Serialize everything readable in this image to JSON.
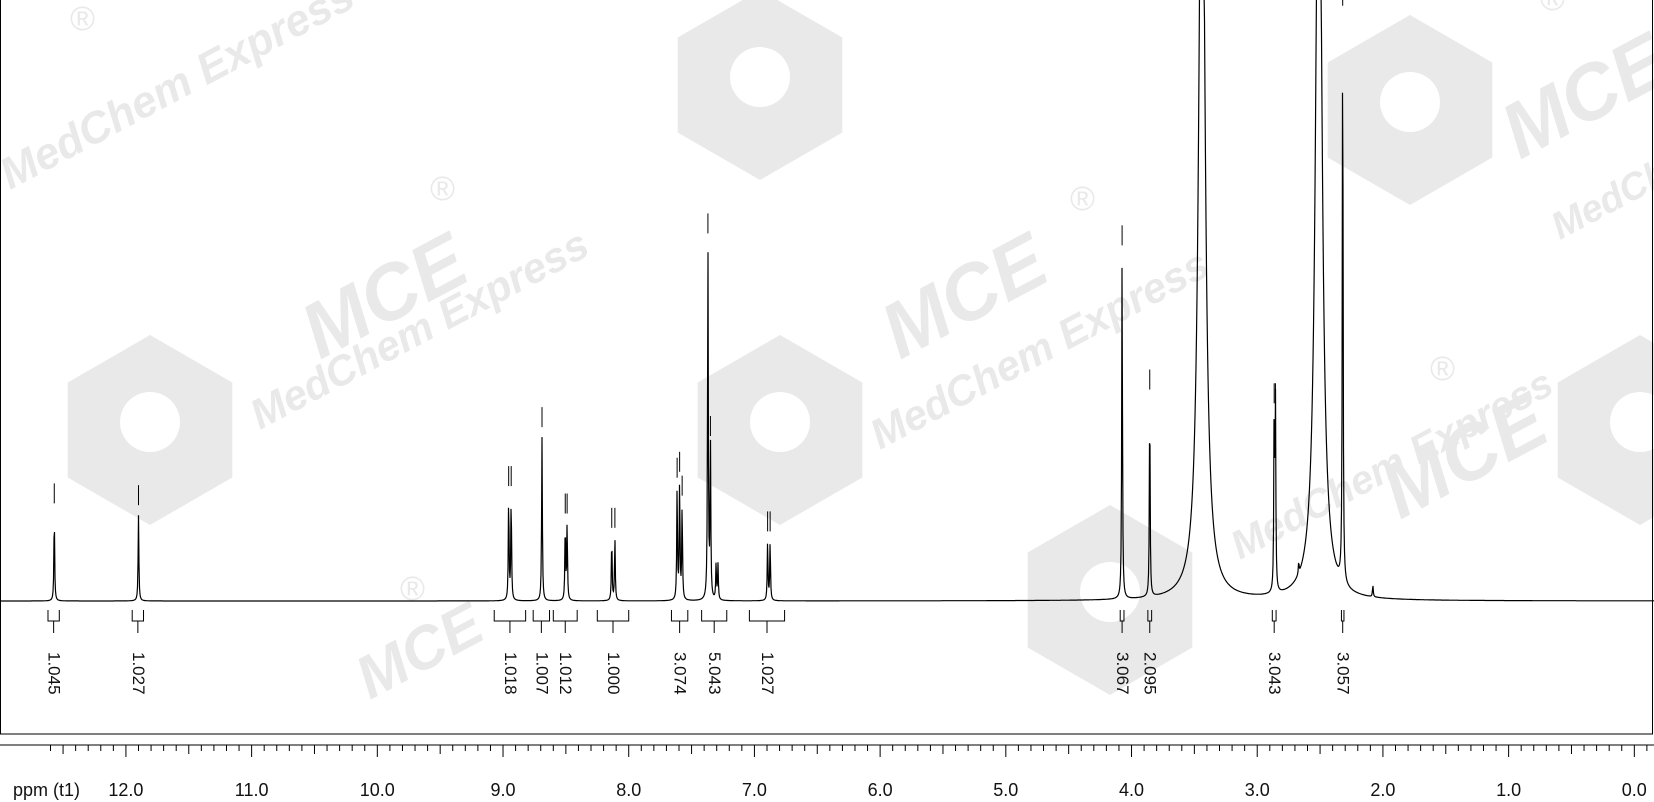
{
  "chart_data": {
    "type": "line",
    "title": "",
    "xlabel": "ppm (t1)",
    "ylabel": "",
    "xlim": [
      12.6,
      -0.2
    ],
    "x_reversed": true,
    "grid": false,
    "x_ticks": [
      {
        "value": 12.0,
        "label": "12.0"
      },
      {
        "value": 11.0,
        "label": "11.0"
      },
      {
        "value": 10.0,
        "label": "10.0"
      },
      {
        "value": 9.0,
        "label": "9.0"
      },
      {
        "value": 8.0,
        "label": "8.0"
      },
      {
        "value": 7.0,
        "label": "7.0"
      },
      {
        "value": 6.0,
        "label": "6.0"
      },
      {
        "value": 5.0,
        "label": "5.0"
      },
      {
        "value": 4.0,
        "label": "4.0"
      },
      {
        "value": 3.0,
        "label": "3.0"
      },
      {
        "value": 2.0,
        "label": "2.0"
      },
      {
        "value": 1.0,
        "label": "1.0"
      },
      {
        "value": 0.0,
        "label": "0.0"
      }
    ],
    "peaks": [
      {
        "ppm": 12.57,
        "height": 0.147
      },
      {
        "ppm": 11.9,
        "height": 0.144
      },
      {
        "ppm": 8.955,
        "height": 0.176
      },
      {
        "ppm": 8.935,
        "height": 0.176
      },
      {
        "ppm": 8.69,
        "height": 0.275
      },
      {
        "ppm": 8.505,
        "height": 0.13
      },
      {
        "ppm": 8.49,
        "height": 0.13
      },
      {
        "ppm": 8.135,
        "height": 0.106
      },
      {
        "ppm": 8.11,
        "height": 0.106
      },
      {
        "ppm": 7.615,
        "height": 0.19
      },
      {
        "ppm": 7.595,
        "height": 0.2
      },
      {
        "ppm": 7.575,
        "height": 0.16
      },
      {
        "ppm": 7.37,
        "height": 0.6
      },
      {
        "ppm": 7.35,
        "height": 0.26
      },
      {
        "ppm": 7.305,
        "height": 0.06
      },
      {
        "ppm": 7.29,
        "height": 0.06
      },
      {
        "ppm": 6.895,
        "height": 0.1
      },
      {
        "ppm": 6.875,
        "height": 0.1
      },
      {
        "ppm": 4.075,
        "height": 0.58
      },
      {
        "ppm": 3.855,
        "height": 0.338
      },
      {
        "ppm": 3.44,
        "height": 1.5
      },
      {
        "ppm": 2.865,
        "height": 0.315
      },
      {
        "ppm": 2.855,
        "height": 0.315
      },
      {
        "ppm": 2.67,
        "height": 0.02
      },
      {
        "ppm": 2.51,
        "height": 1.5
      },
      {
        "ppm": 2.32,
        "height": 0.982
      },
      {
        "ppm": 2.08,
        "height": 0.02
      }
    ],
    "integrals": [
      {
        "from": 12.62,
        "to": 12.53,
        "value": "1.045"
      },
      {
        "from": 11.95,
        "to": 11.86,
        "value": "1.027"
      },
      {
        "from": 9.07,
        "to": 8.82,
        "value": "1.018"
      },
      {
        "from": 8.76,
        "to": 8.63,
        "value": "1.007"
      },
      {
        "from": 8.6,
        "to": 8.41,
        "value": "1.012"
      },
      {
        "from": 8.25,
        "to": 8.0,
        "value": "1.000"
      },
      {
        "from": 7.66,
        "to": 7.53,
        "value": "3.074"
      },
      {
        "from": 7.42,
        "to": 7.22,
        "value": "5.043"
      },
      {
        "from": 7.04,
        "to": 6.76,
        "value": "1.027"
      },
      {
        "from": 4.09,
        "to": 4.06,
        "value": "3.067"
      },
      {
        "from": 3.87,
        "to": 3.84,
        "value": "2.095"
      },
      {
        "from": 2.88,
        "to": 2.85,
        "value": "3.043"
      },
      {
        "from": 2.33,
        "to": 2.31,
        "value": "3.057"
      }
    ]
  },
  "watermark": {
    "brand": "MCE",
    "text": "MedChem Express",
    "registered": "®",
    "color": "#e9e9e9"
  }
}
